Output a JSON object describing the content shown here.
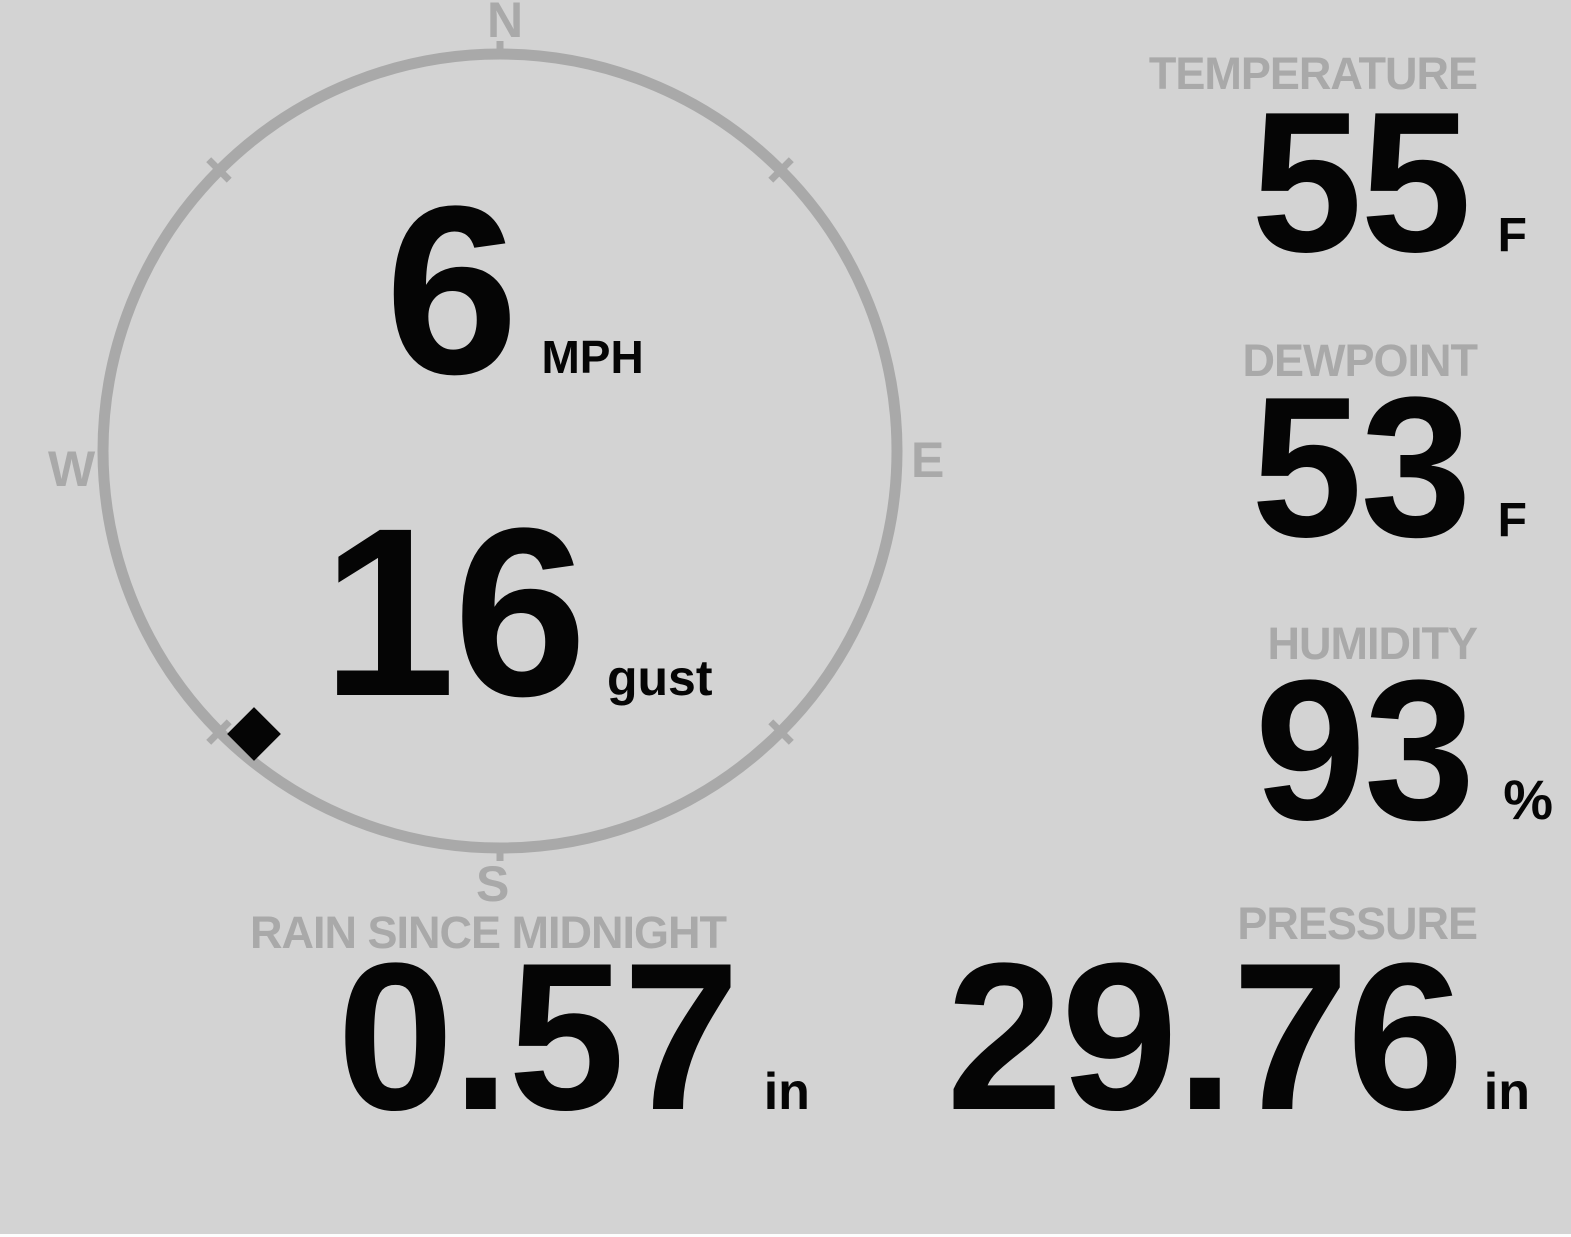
{
  "colors": {
    "background": "#d3d3d3",
    "muted": "#a9a9a9",
    "ink": "#050505"
  },
  "compass": {
    "cardinals": {
      "north": "N",
      "east": "E",
      "south": "S",
      "west": "W"
    },
    "speed": {
      "value": "6",
      "unit": "MPH"
    },
    "gust": {
      "value": "16",
      "unit": "gust"
    },
    "marker_bearing_deg": 221
  },
  "stats": {
    "temperature": {
      "label": "TEMPERATURE",
      "value": "55",
      "unit": "F"
    },
    "dewpoint": {
      "label": "DEWPOINT",
      "value": "53",
      "unit": "F"
    },
    "humidity": {
      "label": "HUMIDITY",
      "value": "93",
      "unit": "%"
    },
    "pressure": {
      "label": "PRESSURE",
      "value": "29.76",
      "unit": "in"
    },
    "rain_since_midnight": {
      "label": "RAIN SINCE MIDNIGHT",
      "value": "0.57",
      "unit": "in"
    }
  }
}
